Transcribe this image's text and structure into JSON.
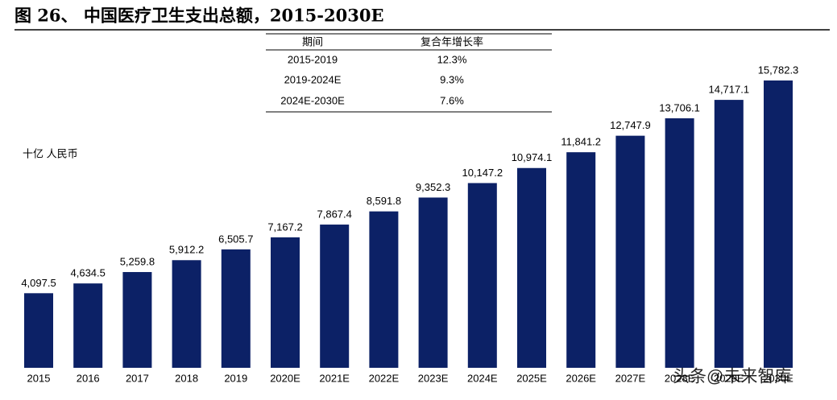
{
  "chart_data": {
    "type": "bar",
    "title": "图 26、 中国医疗卫生支出总额，2015-2030E",
    "unit_label": "十亿 人民币",
    "categories": [
      "2015",
      "2016",
      "2017",
      "2018",
      "2019",
      "2020E",
      "2021E",
      "2022E",
      "2023E",
      "2024E",
      "2025E",
      "2026E",
      "2027E",
      "2028E",
      "2029E",
      "2030E"
    ],
    "values": [
      4097.5,
      4634.5,
      5259.8,
      5912.2,
      6505.7,
      7167.2,
      7867.4,
      8591.8,
      9352.3,
      10147.2,
      10974.1,
      11841.2,
      12747.9,
      13706.1,
      14717.1,
      15782.3
    ],
    "value_labels": [
      "4,097.5",
      "4,634.5",
      "5,259.8",
      "5,912.2",
      "6,505.7",
      "7,167.2",
      "7,867.4",
      "8,591.8",
      "9,352.3",
      "10,147.2",
      "10,974.1",
      "11,841.2",
      "12,747.9",
      "13,706.1",
      "14,717.1",
      "15,782.3"
    ],
    "color": "#0c2166"
  },
  "table": {
    "header": [
      "期间",
      "复合年增长率"
    ],
    "rows": [
      [
        "2015-2019",
        "12.3%"
      ],
      [
        "2019-2024E",
        "9.3%"
      ],
      [
        "2024E-2030E",
        "7.6%"
      ]
    ]
  },
  "watermark": "头条@未来智库"
}
